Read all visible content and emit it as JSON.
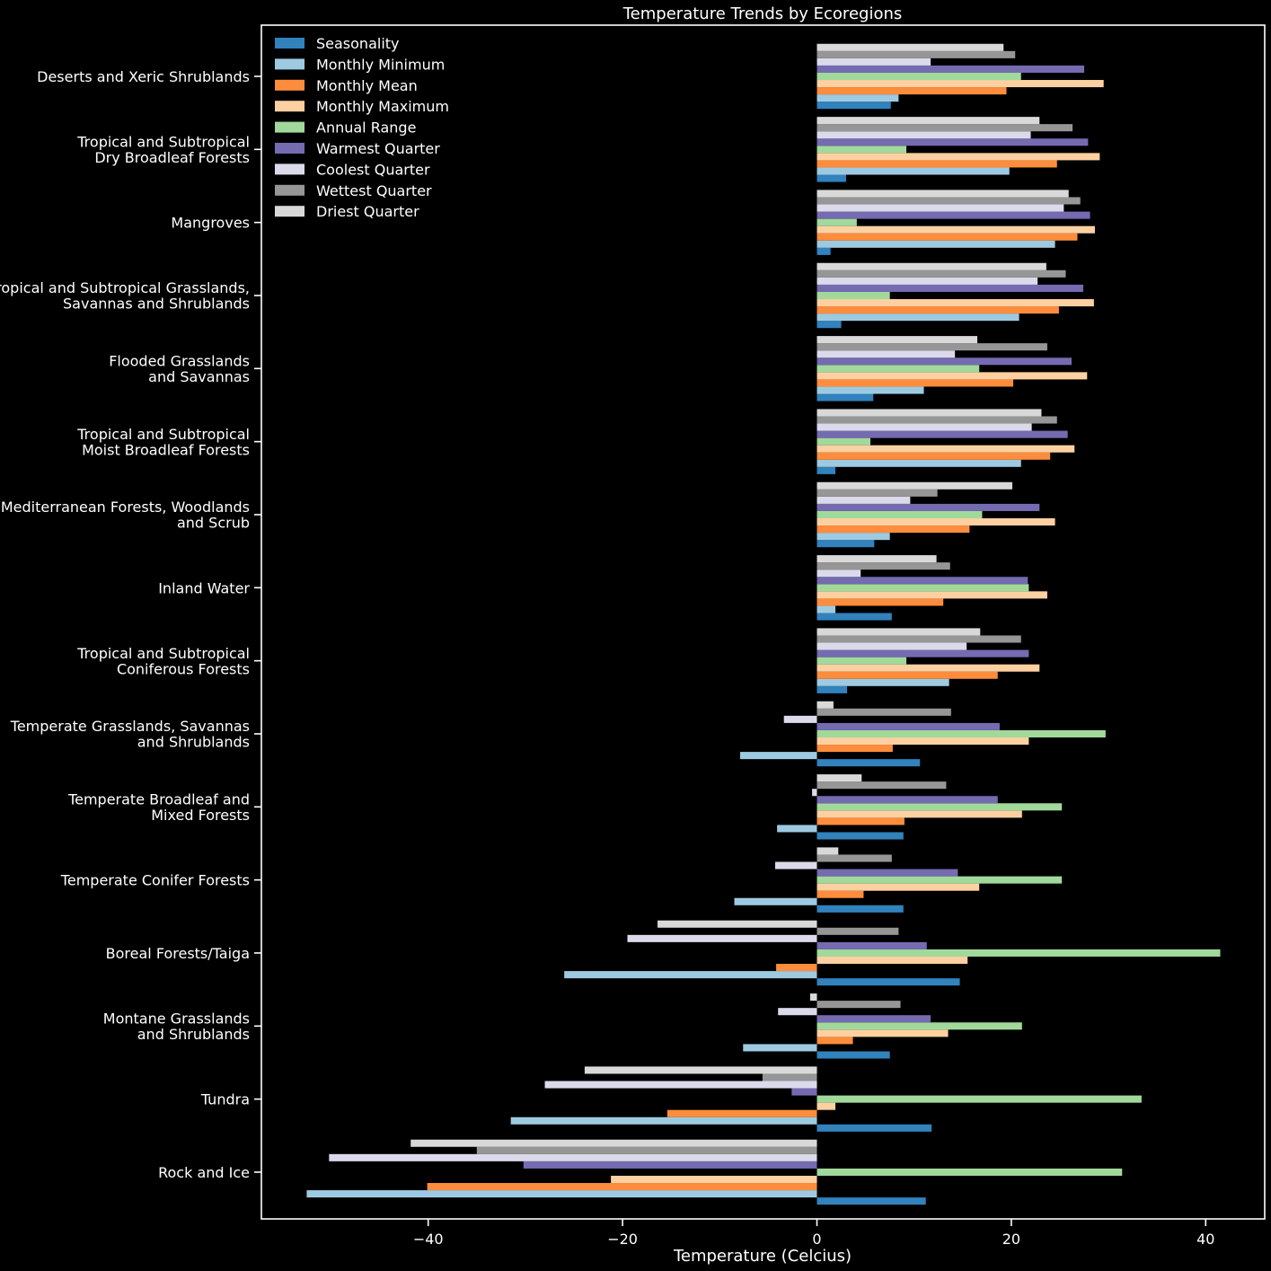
{
  "chart_data": {
    "type": "bar",
    "orientation": "horizontal",
    "title": "Temperature Trends by Ecoregions",
    "xlabel": "Temperature (Celcius)",
    "ylabel": "",
    "xlim": [
      -56,
      46
    ],
    "xticks": [
      -40,
      -20,
      0,
      20,
      40
    ],
    "xtick_labels": [
      "−40",
      "−20",
      "0",
      "20",
      "40"
    ],
    "grid": false,
    "legend_position": "top-left",
    "categories": [
      "Deserts and Xeric Shrublands",
      "Tropical and Subtropical\nDry Broadleaf Forests",
      "Mangroves",
      "Tropical and Subtropical Grasslands,\nSavannas and Shrublands",
      "Flooded Grasslands\nand Savannas",
      "Tropical and Subtropical\nMoist Broadleaf Forests",
      "Mediterranean Forests, Woodlands\nand Scrub",
      "Inland Water",
      "Tropical and Subtropical\nConiferous Forests",
      "Temperate Grasslands, Savannas\nand Shrublands",
      "Temperate Broadleaf and\nMixed Forests",
      "Temperate Conifer Forests",
      "Boreal Forests/Taiga",
      "Montane Grasslands\nand Shrublands",
      "Tundra",
      "Rock and Ice"
    ],
    "series": [
      {
        "name": "Seasonality",
        "color": "#3182bd",
        "values": [
          7.6,
          3.0,
          1.4,
          2.5,
          5.8,
          1.9,
          5.9,
          7.7,
          3.1,
          10.6,
          8.9,
          8.9,
          14.7,
          7.5,
          11.8,
          11.2
        ]
      },
      {
        "name": "Monthly Minimum",
        "color": "#9ecae1",
        "values": [
          8.4,
          19.8,
          24.5,
          20.8,
          11.0,
          21.0,
          7.5,
          1.9,
          13.6,
          -7.9,
          -4.1,
          -8.5,
          -26.0,
          -7.6,
          -31.5,
          -52.5
        ]
      },
      {
        "name": "Monthly Mean",
        "color": "#fd8d3c",
        "values": [
          19.5,
          24.7,
          26.8,
          24.9,
          20.2,
          24.0,
          15.7,
          13.0,
          18.6,
          7.8,
          9.0,
          4.8,
          -4.2,
          3.7,
          -15.4,
          -40.1
        ]
      },
      {
        "name": "Monthly Maximum",
        "color": "#fdd0a2",
        "values": [
          29.5,
          29.1,
          28.6,
          28.5,
          27.8,
          26.5,
          24.5,
          23.7,
          22.9,
          21.8,
          21.1,
          16.7,
          15.5,
          13.5,
          1.9,
          -21.2
        ]
      },
      {
        "name": "Annual Range",
        "color": "#a1d99b",
        "values": [
          21.0,
          9.2,
          4.1,
          7.5,
          16.7,
          5.5,
          17.0,
          21.8,
          9.2,
          29.7,
          25.2,
          25.2,
          41.5,
          21.1,
          33.4,
          31.4
        ]
      },
      {
        "name": "Warmest Quarter",
        "color": "#756bb1",
        "values": [
          27.5,
          27.9,
          28.1,
          27.4,
          26.2,
          25.8,
          22.9,
          21.7,
          21.8,
          18.8,
          18.6,
          14.5,
          11.3,
          11.7,
          -2.6,
          -30.2
        ]
      },
      {
        "name": "Coolest Quarter",
        "color": "#dadaeb",
        "values": [
          11.7,
          22.0,
          25.4,
          22.7,
          14.2,
          22.1,
          9.6,
          4.5,
          15.4,
          -3.4,
          -0.5,
          -4.3,
          -19.5,
          -4.0,
          -28.0,
          -50.2
        ]
      },
      {
        "name": "Wettest Quarter",
        "color": "#969696",
        "values": [
          20.4,
          26.3,
          27.1,
          25.6,
          23.7,
          24.7,
          12.4,
          13.7,
          21.0,
          13.8,
          13.3,
          7.7,
          8.4,
          8.6,
          -5.6,
          -35.0
        ]
      },
      {
        "name": "Driest Quarter",
        "color": "#d9d9d9",
        "values": [
          19.2,
          22.9,
          25.9,
          23.6,
          16.5,
          23.1,
          20.1,
          12.3,
          16.8,
          1.7,
          4.6,
          2.2,
          -16.4,
          -0.7,
          -23.9,
          -41.8
        ]
      }
    ]
  }
}
